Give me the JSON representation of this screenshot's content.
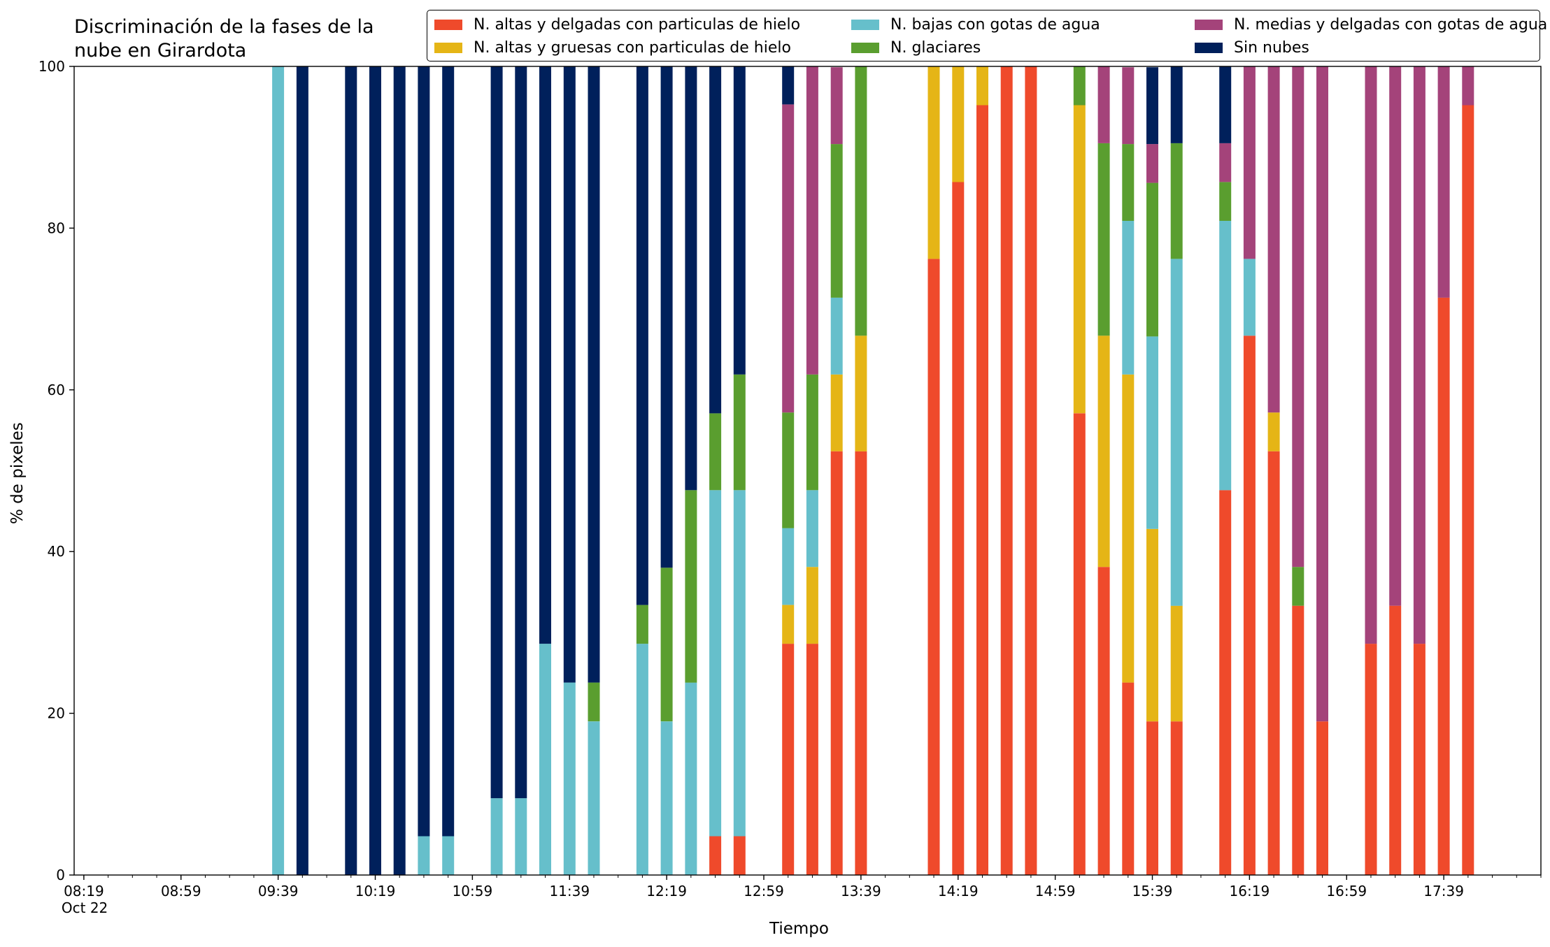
{
  "chart_data": {
    "type": "bar",
    "stacked": true,
    "title": "Discriminación de la fases de la\nnube en Girardota",
    "xlabel": "Tiempo",
    "ylabel": "% de pixeles",
    "ylim": [
      0,
      100
    ],
    "yticks": [
      0,
      20,
      40,
      60,
      80,
      100
    ],
    "xlim": [
      "08:15",
      "18:19"
    ],
    "xticks": [
      {
        "time": "08:19",
        "label": "08:19\nOct 22"
      },
      {
        "time": "08:59",
        "label": "08:59"
      },
      {
        "time": "09:39",
        "label": "09:39"
      },
      {
        "time": "10:19",
        "label": "10:19"
      },
      {
        "time": "10:59",
        "label": "10:59"
      },
      {
        "time": "11:39",
        "label": "11:39"
      },
      {
        "time": "12:19",
        "label": "12:19"
      },
      {
        "time": "12:59",
        "label": "12:59"
      },
      {
        "time": "13:39",
        "label": "13:39"
      },
      {
        "time": "14:19",
        "label": "14:19"
      },
      {
        "time": "14:59",
        "label": "14:59"
      },
      {
        "time": "15:39",
        "label": "15:39"
      },
      {
        "time": "16:19",
        "label": "16:19"
      },
      {
        "time": "16:59",
        "label": "16:59"
      },
      {
        "time": "17:39",
        "label": "17:39"
      }
    ],
    "minor_tick_interval_minutes": 10,
    "grid": false,
    "legend_position": "top-right",
    "times": [
      "09:39",
      "09:49",
      "10:09",
      "10:19",
      "10:29",
      "10:39",
      "10:49",
      "11:09",
      "11:19",
      "11:29",
      "11:39",
      "11:49",
      "12:09",
      "12:19",
      "12:29",
      "12:39",
      "12:49",
      "13:09",
      "13:19",
      "13:29",
      "13:39",
      "14:09",
      "14:19",
      "14:29",
      "14:39",
      "14:49",
      "15:09",
      "15:19",
      "15:29",
      "15:39",
      "15:49",
      "16:09",
      "16:19",
      "16:29",
      "16:39",
      "16:49",
      "17:09",
      "17:19",
      "17:29",
      "17:39",
      "17:49"
    ],
    "series": [
      {
        "name": "N. altas y delgadas con particulas de hielo",
        "color": "#ef4a2b",
        "values": [
          0,
          0,
          0,
          0,
          0,
          0,
          0,
          0,
          0,
          0,
          0,
          0,
          0,
          0,
          0,
          4.8,
          4.8,
          28.6,
          28.6,
          52.4,
          52.4,
          76.2,
          85.7,
          95.2,
          100,
          100,
          57.1,
          38.1,
          23.8,
          19,
          19,
          47.6,
          66.7,
          52.4,
          33.3,
          19,
          28.6,
          33.3,
          28.6,
          71.4,
          95.2
        ]
      },
      {
        "name": "N. altas y gruesas con particulas de hielo",
        "color": "#e5b516",
        "values": [
          0,
          0,
          0,
          0,
          0,
          0,
          0,
          0,
          0,
          0,
          0,
          0,
          0,
          0,
          0,
          0,
          0,
          4.8,
          9.5,
          9.5,
          14.3,
          23.8,
          14.3,
          4.8,
          0,
          0,
          38.1,
          28.6,
          38.1,
          23.8,
          14.3,
          0,
          0,
          4.8,
          0,
          0,
          0,
          0,
          0,
          0,
          0
        ]
      },
      {
        "name": "N. bajas con gotas de agua",
        "color": "#66bfcb",
        "values": [
          100,
          0,
          0,
          0,
          0,
          4.8,
          4.8,
          9.5,
          9.5,
          28.6,
          23.8,
          19,
          28.6,
          19,
          23.8,
          42.8,
          42.8,
          9.5,
          9.5,
          9.5,
          0,
          0,
          0,
          0,
          0,
          0,
          0,
          0,
          19,
          23.8,
          42.9,
          33.3,
          9.5,
          0,
          0,
          0,
          0,
          0,
          0,
          0,
          0
        ]
      },
      {
        "name": "N. glaciares",
        "color": "#5a9e2f",
        "values": [
          0,
          0,
          0,
          0,
          0,
          0,
          0,
          0,
          0,
          0,
          0,
          4.8,
          4.8,
          19,
          23.8,
          9.5,
          14.3,
          14.3,
          14.3,
          19,
          33.3,
          0,
          0,
          0,
          0,
          0,
          4.8,
          23.8,
          9.5,
          19,
          14.3,
          4.8,
          0,
          0,
          4.8,
          0,
          0,
          0,
          0,
          0,
          0
        ]
      },
      {
        "name": "N. medias y delgadas con gotas de agua",
        "color": "#a4437a",
        "values": [
          0,
          0,
          0,
          0,
          0,
          0,
          0,
          0,
          0,
          0,
          0,
          0,
          0,
          0,
          0,
          0,
          0,
          38.1,
          38.1,
          9.5,
          0,
          0,
          0,
          0,
          0,
          0,
          0,
          9.5,
          9.5,
          4.8,
          0,
          4.8,
          23.8,
          42.8,
          61.9,
          81,
          71.4,
          66.7,
          71.4,
          28.6,
          4.8
        ]
      },
      {
        "name": "Sin nubes",
        "color": "#00205b",
        "values": [
          0,
          100,
          100,
          100,
          100,
          95.2,
          95.2,
          90.5,
          90.5,
          71.4,
          76.2,
          76.2,
          66.6,
          62,
          52.4,
          42.9,
          38.1,
          4.7,
          0,
          0,
          0,
          0,
          0,
          0,
          0,
          0,
          0,
          0,
          0,
          9.5,
          9.5,
          9.5,
          0,
          0,
          0,
          0,
          0,
          0,
          0,
          0,
          0
        ]
      }
    ]
  }
}
